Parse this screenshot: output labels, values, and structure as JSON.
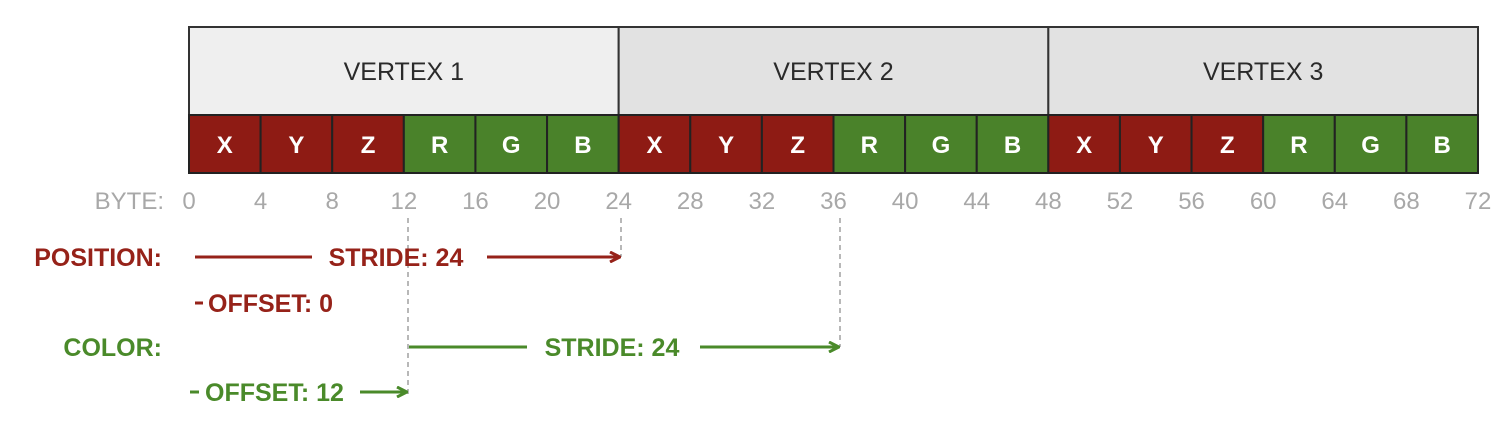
{
  "colors": {
    "position": "#8e1b14",
    "color": "#4a822a",
    "vertex1_bg": "#efefef",
    "vertex_bg": "#e2e2e2",
    "byte_label": "#a8a8a8"
  },
  "vertices": [
    "VERTEX 1",
    "VERTEX 2",
    "VERTEX 3"
  ],
  "components": [
    {
      "label": "X",
      "attr": "position"
    },
    {
      "label": "Y",
      "attr": "position"
    },
    {
      "label": "Z",
      "attr": "position"
    },
    {
      "label": "R",
      "attr": "color"
    },
    {
      "label": "G",
      "attr": "color"
    },
    {
      "label": "B",
      "attr": "color"
    }
  ],
  "byte_axis": {
    "label": "BYTE:",
    "ticks": [
      "0",
      "4",
      "8",
      "12",
      "16",
      "20",
      "24",
      "28",
      "32",
      "36",
      "40",
      "44",
      "48",
      "52",
      "56",
      "60",
      "64",
      "68",
      "72"
    ]
  },
  "position": {
    "label": "POSITION:",
    "stride": "STRIDE: 24",
    "offset": "OFFSET: 0"
  },
  "color": {
    "label": "COLOR:",
    "stride": "STRIDE: 24",
    "offset": "OFFSET: 12"
  }
}
